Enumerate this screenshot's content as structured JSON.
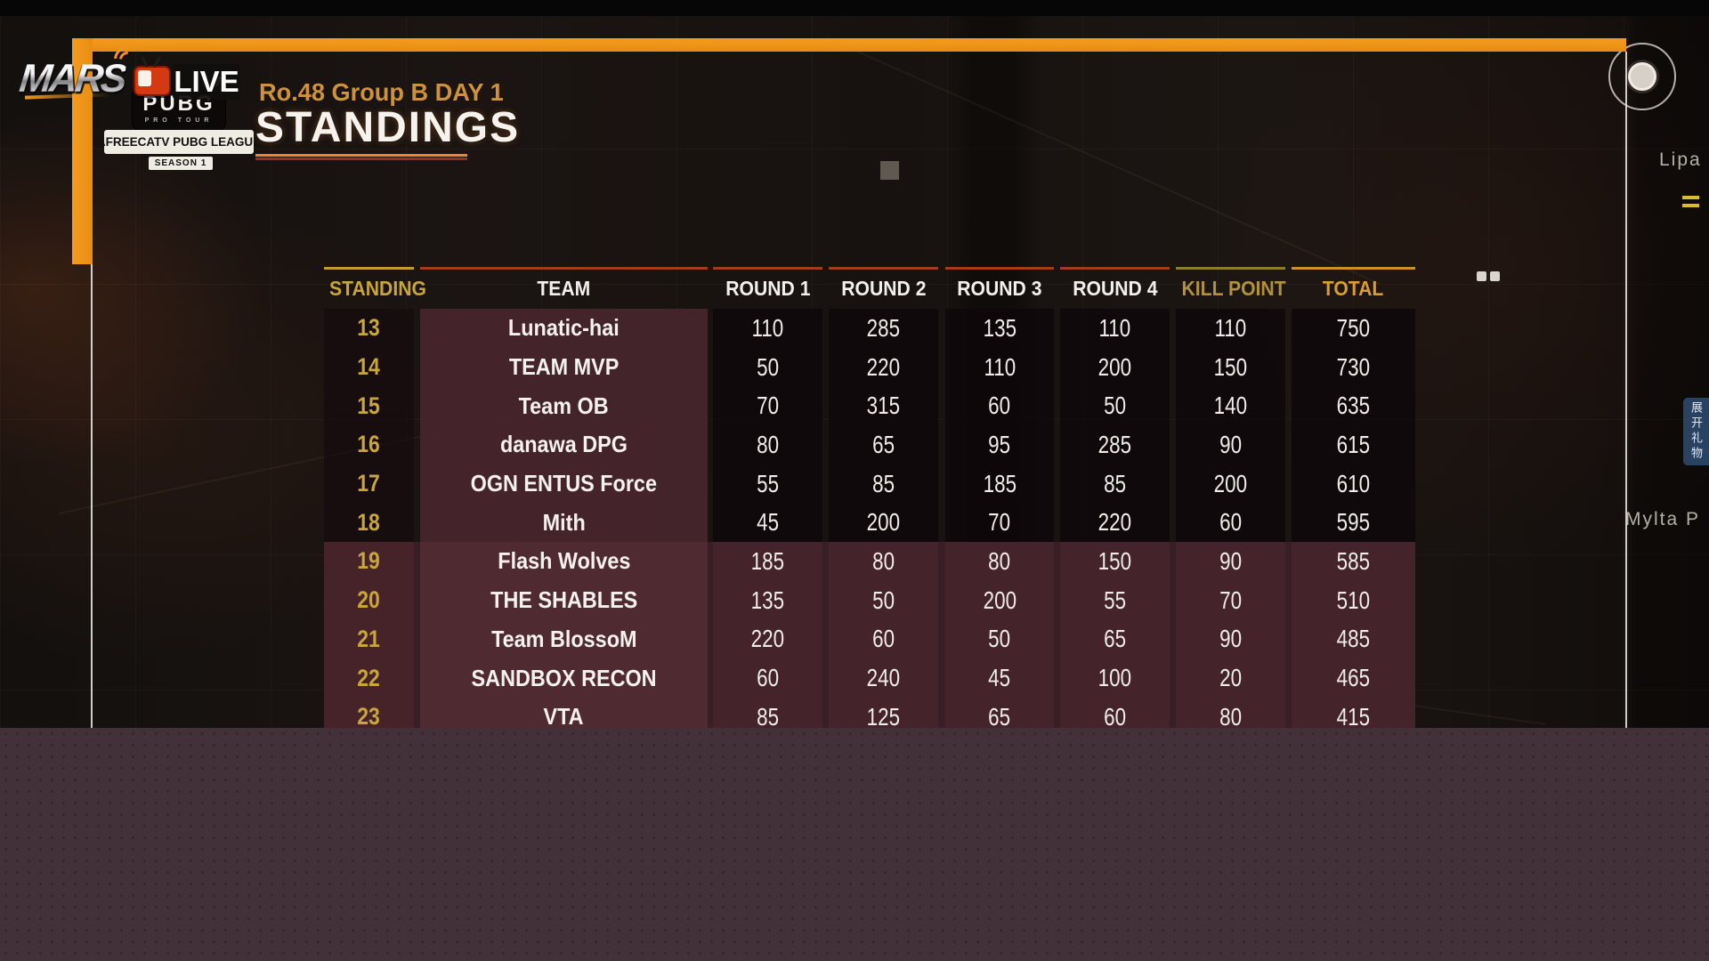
{
  "branding": {
    "mars": "MARS",
    "live": "LIVE",
    "badge": {
      "pubg": "PUBG",
      "pro_tour": "PRO TOUR",
      "league": "AFREECATV PUBG LEAGUE",
      "season": "SEASON 1"
    }
  },
  "header": {
    "subtitle": "Ro.48 Group B DAY 1",
    "title": "STANDINGS"
  },
  "table": {
    "columns": [
      "STANDING",
      "TEAM",
      "ROUND 1",
      "ROUND 2",
      "ROUND 3",
      "ROUND 4",
      "KILL POINT",
      "TOTAL"
    ],
    "rows": [
      {
        "standing": 13,
        "team": "Lunatic-hai",
        "r1": 110,
        "r2": 285,
        "r3": 135,
        "r4": 110,
        "kill": 110,
        "total": 750,
        "highlight": false
      },
      {
        "standing": 14,
        "team": "TEAM MVP",
        "r1": 50,
        "r2": 220,
        "r3": 110,
        "r4": 200,
        "kill": 150,
        "total": 730,
        "highlight": false
      },
      {
        "standing": 15,
        "team": "Team OB",
        "r1": 70,
        "r2": 315,
        "r3": 60,
        "r4": 50,
        "kill": 140,
        "total": 635,
        "highlight": false
      },
      {
        "standing": 16,
        "team": "danawa DPG",
        "r1": 80,
        "r2": 65,
        "r3": 95,
        "r4": 285,
        "kill": 90,
        "total": 615,
        "highlight": false
      },
      {
        "standing": 17,
        "team": "OGN ENTUS Force",
        "r1": 55,
        "r2": 85,
        "r3": 185,
        "r4": 85,
        "kill": 200,
        "total": 610,
        "highlight": false
      },
      {
        "standing": 18,
        "team": "Mith",
        "r1": 45,
        "r2": 200,
        "r3": 70,
        "r4": 220,
        "kill": 60,
        "total": 595,
        "highlight": false
      },
      {
        "standing": 19,
        "team": "Flash Wolves",
        "r1": 185,
        "r2": 80,
        "r3": 80,
        "r4": 150,
        "kill": 90,
        "total": 585,
        "highlight": true
      },
      {
        "standing": 20,
        "team": "THE SHABLES",
        "r1": 135,
        "r2": 50,
        "r3": 200,
        "r4": 55,
        "kill": 70,
        "total": 510,
        "highlight": true
      },
      {
        "standing": 21,
        "team": "Team BlossoM",
        "r1": 220,
        "r2": 60,
        "r3": 50,
        "r4": 65,
        "kill": 90,
        "total": 485,
        "highlight": true
      },
      {
        "standing": 22,
        "team": "SANDBOX RECON",
        "r1": 60,
        "r2": 240,
        "r3": 45,
        "r4": 100,
        "kill": 20,
        "total": 465,
        "highlight": true
      },
      {
        "standing": 23,
        "team": "VTA",
        "r1": 85,
        "r2": 125,
        "r3": 65,
        "r4": 60,
        "kill": 80,
        "total": 415,
        "highlight": true
      }
    ]
  },
  "map": {
    "label_top": "Lipa",
    "label_bottom": "Mylta P",
    "gift_tab": "展开礼物"
  },
  "colors": {
    "accent_orange": "#ee9418",
    "gold": "#c9a53c",
    "rust_line": "#a23c1a",
    "maroon_row": "#48272d",
    "highlight_row": "#4f2a31",
    "overlay": "#433139"
  }
}
